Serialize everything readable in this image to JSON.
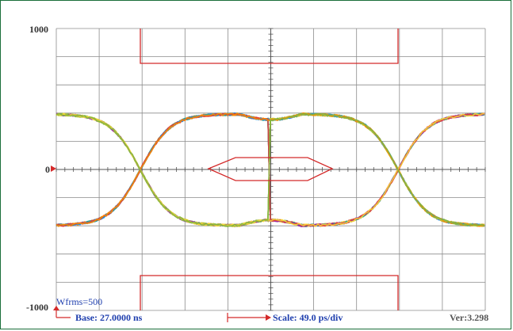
{
  "scope": {
    "y_labels": {
      "top": "1000",
      "zero": "0",
      "bottom": "-1000"
    },
    "waveforms_label": "Wfrms=500",
    "base_label": "Base: 27.0000 ns",
    "scale_label": "Scale: 49.0 ps/div",
    "version_label": "Ver:3.298"
  },
  "colors": {
    "grid": "#8c8c8c",
    "axis": "#555555",
    "mask": "#d42a2a",
    "text_blue": "#1f3fae",
    "frame": "#1a6e3a",
    "trace_palette": [
      "#e53935",
      "#fb8c00",
      "#fdd835",
      "#7cb342",
      "#26a69a",
      "#1e88e5",
      "#8e24aa",
      "#c0ca33"
    ]
  }
}
